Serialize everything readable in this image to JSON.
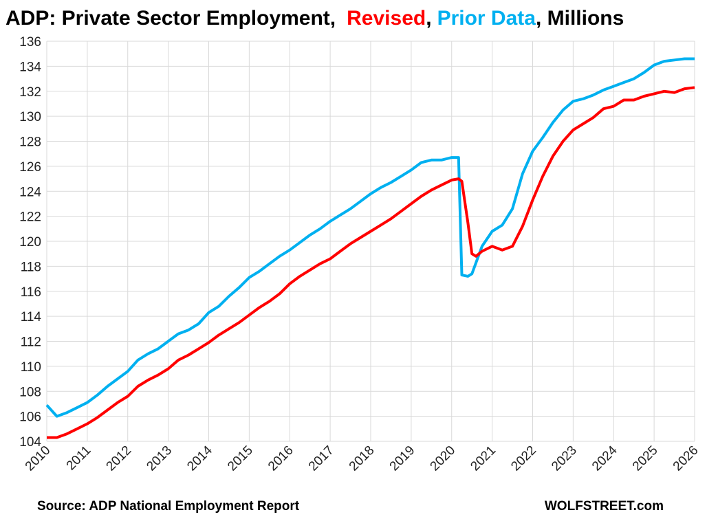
{
  "chart_data": {
    "type": "line",
    "title": {
      "prefix": "ADP: Private Sector Employment,",
      "separator": ",",
      "suffix": ", Millions"
    },
    "source": "Source: ADP National Employment Report",
    "brand": "WOLFSTREET.com",
    "xlim": [
      2010,
      2026
    ],
    "xticks": [
      2010,
      2011,
      2012,
      2013,
      2014,
      2015,
      2016,
      2017,
      2018,
      2019,
      2020,
      2021,
      2022,
      2023,
      2024,
      2025,
      2026
    ],
    "ylim": [
      104,
      136
    ],
    "yticks": [
      104,
      106,
      108,
      110,
      112,
      114,
      116,
      118,
      120,
      122,
      124,
      126,
      128,
      130,
      132,
      134,
      136
    ],
    "grid": true,
    "series": [
      {
        "name": "Revised",
        "color": "#ff0000",
        "x": [
          2010,
          2010.25,
          2010.5,
          2010.75,
          2011,
          2011.25,
          2011.5,
          2011.75,
          2012,
          2012.25,
          2012.5,
          2012.75,
          2013,
          2013.25,
          2013.5,
          2013.75,
          2014,
          2014.25,
          2014.5,
          2014.75,
          2015,
          2015.25,
          2015.5,
          2015.75,
          2016,
          2016.25,
          2016.5,
          2016.75,
          2017,
          2017.25,
          2017.5,
          2017.75,
          2018,
          2018.25,
          2018.5,
          2018.75,
          2019,
          2019.25,
          2019.5,
          2019.75,
          2020,
          2020.17,
          2020.25,
          2020.4,
          2020.5,
          2020.6,
          2020.75,
          2021,
          2021.25,
          2021.5,
          2021.75,
          2022,
          2022.25,
          2022.5,
          2022.75,
          2023,
          2023.25,
          2023.5,
          2023.75,
          2024,
          2024.25,
          2024.5,
          2024.75,
          2025,
          2025.25,
          2025.5,
          2025.75,
          2026
        ],
        "values": [
          104.3,
          104.3,
          104.6,
          105.0,
          105.4,
          105.9,
          106.5,
          107.1,
          107.6,
          108.4,
          108.9,
          109.3,
          109.8,
          110.5,
          110.9,
          111.4,
          111.9,
          112.5,
          113.0,
          113.5,
          114.1,
          114.7,
          115.2,
          115.8,
          116.6,
          117.2,
          117.7,
          118.2,
          118.6,
          119.2,
          119.8,
          120.3,
          120.8,
          121.3,
          121.8,
          122.4,
          123.0,
          123.6,
          124.1,
          124.5,
          124.9,
          125.0,
          124.8,
          121.5,
          119.0,
          118.8,
          119.2,
          119.6,
          119.3,
          119.6,
          121.2,
          123.3,
          125.2,
          126.8,
          128.0,
          128.9,
          129.4,
          129.9,
          130.6,
          130.8,
          131.3,
          131.3,
          131.6,
          131.8,
          132.0,
          131.9,
          132.2,
          132.3
        ]
      },
      {
        "name": "Prior Data",
        "color": "#00b0f0",
        "x": [
          2010,
          2010.25,
          2010.5,
          2010.75,
          2011,
          2011.25,
          2011.5,
          2011.75,
          2012,
          2012.25,
          2012.5,
          2012.75,
          2013,
          2013.25,
          2013.5,
          2013.75,
          2014,
          2014.25,
          2014.5,
          2014.75,
          2015,
          2015.25,
          2015.5,
          2015.75,
          2016,
          2016.25,
          2016.5,
          2016.75,
          2017,
          2017.25,
          2017.5,
          2017.75,
          2018,
          2018.25,
          2018.5,
          2018.75,
          2019,
          2019.25,
          2019.5,
          2019.75,
          2020,
          2020.17,
          2020.25,
          2020.4,
          2020.5,
          2020.75,
          2021,
          2021.25,
          2021.5,
          2021.75,
          2022,
          2022.25,
          2022.5,
          2022.75,
          2023,
          2023.25,
          2023.5,
          2023.75,
          2024,
          2024.25,
          2024.5,
          2024.75,
          2025,
          2025.25,
          2025.5,
          2025.75,
          2026
        ],
        "values": [
          106.9,
          106.0,
          106.3,
          106.7,
          107.1,
          107.7,
          108.4,
          109.0,
          109.6,
          110.5,
          111.0,
          111.4,
          112.0,
          112.6,
          112.9,
          113.4,
          114.3,
          114.8,
          115.6,
          116.3,
          117.1,
          117.6,
          118.2,
          118.8,
          119.3,
          119.9,
          120.5,
          121.0,
          121.6,
          122.1,
          122.6,
          123.2,
          123.8,
          124.3,
          124.7,
          125.2,
          125.7,
          126.3,
          126.5,
          126.5,
          126.7,
          126.7,
          117.3,
          117.2,
          117.4,
          119.6,
          120.8,
          121.3,
          122.6,
          125.4,
          127.2,
          128.3,
          129.5,
          130.5,
          131.2,
          131.4,
          131.7,
          132.1,
          132.4,
          132.7,
          133.0,
          133.5,
          134.1,
          134.4,
          134.5,
          134.6,
          134.6
        ]
      }
    ]
  }
}
